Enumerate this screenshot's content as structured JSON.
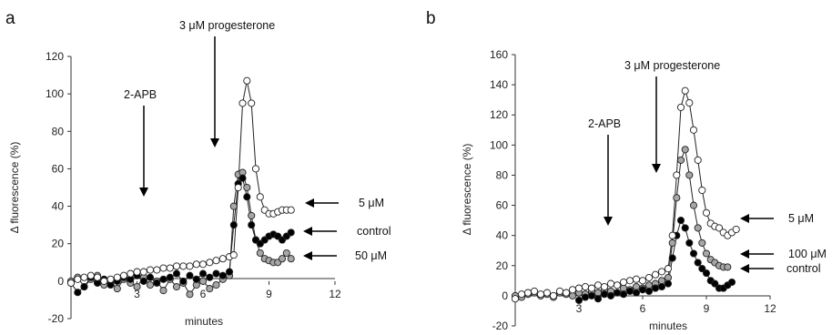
{
  "figure": {
    "panel_labels": [
      "a",
      "b"
    ]
  },
  "chart_data": [
    {
      "type": "scatter",
      "panel": "a",
      "ylabel": "Δ fluorescence (%)",
      "xlabel": "minutes",
      "xlim": [
        0,
        12
      ],
      "ylim": [
        -20,
        120
      ],
      "xticks": [
        0,
        3,
        6,
        9,
        12
      ],
      "yticks": [
        -20,
        0,
        20,
        40,
        60,
        80,
        100,
        120
      ],
      "grid": false,
      "annotations": [
        {
          "id": "progesterone",
          "text": "3 μM progesterone",
          "type": "arrow-down",
          "x": 6.8
        },
        {
          "id": "apb",
          "text": "2-APB",
          "type": "arrow-down",
          "x": 3.3
        }
      ],
      "series": [
        {
          "name": "5 μM",
          "color": "#ffffff",
          "x": [
            0.0,
            0.3,
            0.6,
            0.9,
            1.2,
            1.5,
            1.8,
            2.1,
            2.4,
            2.7,
            3.0,
            3.3,
            3.6,
            3.9,
            4.2,
            4.5,
            4.8,
            5.1,
            5.4,
            5.7,
            6.0,
            6.3,
            6.6,
            6.9,
            7.2,
            7.4,
            7.6,
            7.8,
            8.0,
            8.2,
            8.4,
            8.6,
            8.8,
            9.0,
            9.2,
            9.4,
            9.6,
            9.8,
            10.0
          ],
          "y": [
            -1,
            1,
            2,
            3,
            2,
            0,
            1,
            2,
            3,
            4,
            5,
            5,
            6,
            6,
            7,
            7,
            8,
            8,
            8,
            9,
            9,
            10,
            11,
            12,
            13,
            14,
            50,
            95,
            107,
            95,
            60,
            45,
            38,
            36,
            36,
            37,
            38,
            38,
            38
          ]
        },
        {
          "name": "control",
          "color": "#000000",
          "x": [
            0.0,
            0.3,
            0.6,
            0.9,
            1.2,
            1.5,
            1.8,
            2.1,
            2.4,
            2.7,
            3.0,
            3.3,
            3.6,
            3.9,
            4.2,
            4.5,
            4.8,
            5.1,
            5.4,
            5.7,
            6.0,
            6.3,
            6.6,
            6.9,
            7.2,
            7.4,
            7.6,
            7.8,
            8.0,
            8.2,
            8.4,
            8.6,
            8.8,
            9.0,
            9.2,
            9.4,
            9.6,
            9.8,
            10.0
          ],
          "y": [
            -1,
            -6,
            -3,
            2,
            -1,
            1,
            -2,
            0,
            2,
            1,
            3,
            0,
            2,
            -1,
            1,
            2,
            4,
            0,
            3,
            1,
            4,
            2,
            4,
            3,
            5,
            30,
            52,
            55,
            45,
            30,
            22,
            20,
            22,
            24,
            25,
            24,
            22,
            24,
            26
          ]
        },
        {
          "name": "50 μM",
          "color": "#a6a6a6",
          "x": [
            0.0,
            0.3,
            0.6,
            0.9,
            1.2,
            1.5,
            1.8,
            2.1,
            2.4,
            2.7,
            3.0,
            3.3,
            3.6,
            3.9,
            4.2,
            4.5,
            4.8,
            5.1,
            5.4,
            5.7,
            6.0,
            6.3,
            6.6,
            6.9,
            7.2,
            7.4,
            7.6,
            7.8,
            8.0,
            8.2,
            8.4,
            8.6,
            8.8,
            9.0,
            9.2,
            9.4,
            9.6,
            9.8,
            10.0
          ],
          "y": [
            0,
            2,
            -3,
            1,
            3,
            -2,
            0,
            -4,
            1,
            -1,
            -3,
            2,
            -2,
            0,
            -5,
            1,
            -3,
            -1,
            -7,
            -2,
            0,
            -4,
            -2,
            1,
            3,
            40,
            57,
            58,
            50,
            35,
            22,
            15,
            12,
            11,
            10,
            10,
            12,
            15,
            12
          ]
        }
      ],
      "series_labels": [
        "5 μM",
        "control",
        "50 μM"
      ]
    },
    {
      "type": "scatter",
      "panel": "b",
      "ylabel": "Δ fluorescence (%)",
      "xlabel": "minutes",
      "xlim": [
        0,
        12
      ],
      "ylim": [
        -20,
        160
      ],
      "xticks": [
        0,
        3,
        6,
        9,
        12
      ],
      "yticks": [
        -20,
        0,
        20,
        40,
        60,
        80,
        100,
        120,
        140,
        160
      ],
      "grid": false,
      "annotations": [
        {
          "id": "progesterone",
          "text": "3 μM progesterone",
          "type": "arrow-down",
          "x": 7.0
        },
        {
          "id": "apb",
          "text": "2-APB",
          "type": "arrow-down",
          "x": 4.0
        }
      ],
      "series": [
        {
          "name": "5 μM",
          "color": "#ffffff",
          "x": [
            0.0,
            0.3,
            0.6,
            0.9,
            1.2,
            1.5,
            1.8,
            2.1,
            2.4,
            2.7,
            3.0,
            3.3,
            3.6,
            3.9,
            4.2,
            4.5,
            4.8,
            5.1,
            5.4,
            5.7,
            6.0,
            6.3,
            6.6,
            6.9,
            7.2,
            7.4,
            7.6,
            7.8,
            8.0,
            8.2,
            8.4,
            8.6,
            8.8,
            9.0,
            9.2,
            9.4,
            9.6,
            9.8,
            10.0,
            10.2,
            10.4
          ],
          "y": [
            -2,
            1,
            2,
            3,
            1,
            2,
            0,
            3,
            2,
            4,
            5,
            6,
            5,
            7,
            6,
            8,
            7,
            9,
            10,
            11,
            10,
            12,
            14,
            16,
            18,
            40,
            80,
            125,
            136,
            128,
            110,
            90,
            70,
            55,
            48,
            46,
            45,
            42,
            40,
            42,
            44
          ]
        },
        {
          "name": "100 μM",
          "color": "#a6a6a6",
          "x": [
            0.0,
            0.3,
            0.6,
            0.9,
            1.2,
            1.5,
            1.8,
            2.1,
            2.4,
            2.7,
            3.0,
            3.3,
            3.6,
            3.9,
            4.2,
            4.5,
            4.8,
            5.1,
            5.4,
            5.7,
            6.0,
            6.3,
            6.6,
            6.9,
            7.2,
            7.4,
            7.6,
            7.8,
            8.0,
            8.2,
            8.4,
            8.6,
            8.8,
            9.0,
            9.2,
            9.4,
            9.6,
            9.8,
            10.0
          ],
          "y": [
            0,
            -1,
            1,
            2,
            0,
            1,
            -1,
            2,
            1,
            0,
            2,
            1,
            3,
            2,
            4,
            3,
            2,
            5,
            4,
            6,
            5,
            7,
            8,
            10,
            12,
            35,
            65,
            90,
            97,
            80,
            60,
            45,
            35,
            28,
            24,
            22,
            20,
            19,
            19
          ]
        },
        {
          "name": "control",
          "color": "#000000",
          "x": [
            3.0,
            3.3,
            3.6,
            3.9,
            4.2,
            4.5,
            4.8,
            5.1,
            5.4,
            5.7,
            6.0,
            6.3,
            6.6,
            6.9,
            7.2,
            7.4,
            7.6,
            7.8,
            8.0,
            8.2,
            8.4,
            8.6,
            8.8,
            9.0,
            9.2,
            9.4,
            9.6,
            9.8,
            10.0,
            10.2
          ],
          "y": [
            -3,
            -1,
            0,
            -2,
            1,
            0,
            2,
            1,
            3,
            2,
            4,
            3,
            5,
            6,
            8,
            25,
            40,
            50,
            45,
            35,
            28,
            22,
            18,
            15,
            10,
            8,
            5,
            5,
            7,
            9
          ]
        }
      ],
      "series_labels": [
        "5 μM",
        "100 μM",
        "control"
      ]
    }
  ]
}
